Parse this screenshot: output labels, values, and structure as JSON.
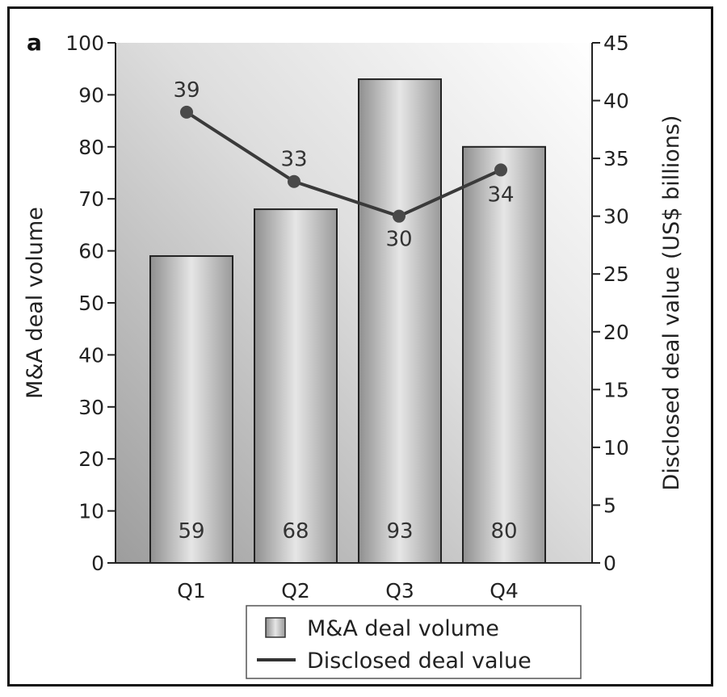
{
  "chart_data": {
    "type": "bar",
    "panel_label": "a",
    "categories": [
      "Q1",
      "Q2",
      "Q3",
      "Q4"
    ],
    "series": [
      {
        "name": "M&A deal volume",
        "type": "bar",
        "axis": "left",
        "values": [
          59,
          68,
          93,
          80
        ]
      },
      {
        "name": "Disclosed deal value",
        "type": "line",
        "axis": "right",
        "values": [
          39,
          33,
          30,
          34
        ]
      }
    ],
    "bar_labels": [
      "59",
      "68",
      "93",
      "80"
    ],
    "line_labels": [
      "39",
      "33",
      "30",
      "34"
    ],
    "ylabel_left": "M&A deal volume",
    "ylabel_right": "Disclosed deal value (US$ billions)",
    "ylim_left": [
      0,
      100
    ],
    "ylim_right": [
      0,
      45
    ],
    "yticks_left": [
      "0",
      "10",
      "20",
      "30",
      "40",
      "50",
      "60",
      "70",
      "80",
      "90",
      "100"
    ],
    "yticks_right": [
      "0",
      "5",
      "10",
      "15",
      "20",
      "25",
      "30",
      "35",
      "40",
      "45"
    ],
    "grid": false,
    "legend_position": "bottom",
    "legend": [
      "M&A deal volume",
      "Disclosed deal value"
    ],
    "colors": {
      "line": "#3a3a3a",
      "bar_edge": "#222222"
    }
  }
}
